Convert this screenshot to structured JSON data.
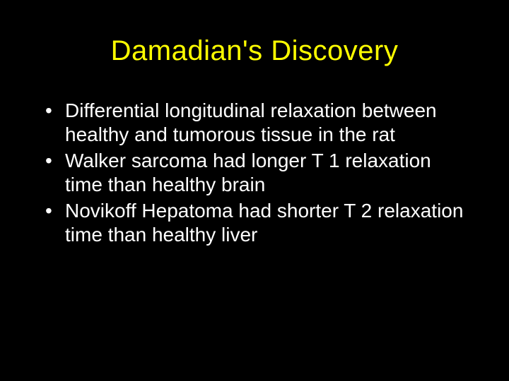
{
  "slide": {
    "title": "Damadian's Discovery",
    "title_color": "#ffff00",
    "title_fontsize": 40,
    "background_color": "#000000",
    "body_color": "#ffffff",
    "body_fontsize": 28,
    "font_family": "Verdana",
    "bullets": [
      "Differential longitudinal relaxation between healthy and tumorous tissue in the rat",
      "Walker sarcoma had longer T 1 relaxation time than healthy brain",
      "Novikoff Hepatoma had shorter T 2 relaxation time than healthy liver"
    ]
  }
}
